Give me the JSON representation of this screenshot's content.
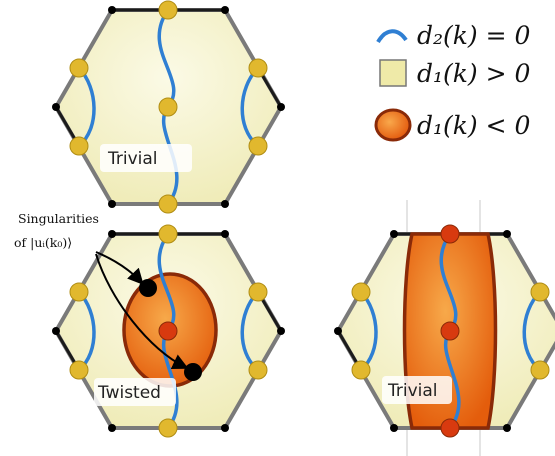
{
  "legend": {
    "line_label": "d₂(k) = 0",
    "square_label": "d₁(k) > 0",
    "circle_label": "d₁(k) < 0"
  },
  "annotation": {
    "line1": "Singularities",
    "line2": "of |uᵢ(k₀)⟩"
  },
  "panels": {
    "top_left": {
      "label": "Trivial"
    },
    "bottom_left": {
      "label": "Twisted"
    },
    "bottom_right": {
      "label": "Trivial"
    }
  },
  "colors": {
    "hexagon_fill": "#f4f1c8",
    "curve": "#2f7fd3",
    "node_yellow": "#e1b82e",
    "node_red": "#d83a0f",
    "region_orange": "#ef7a16",
    "region_edge": "#8a2a08",
    "singularity": "#000000"
  }
}
